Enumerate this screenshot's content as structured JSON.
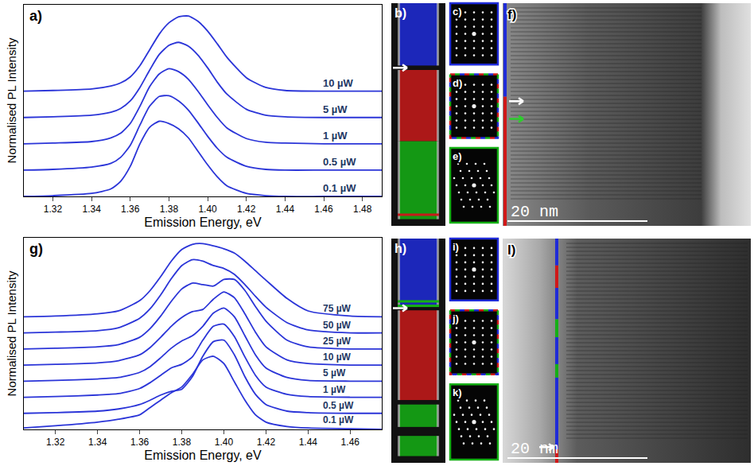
{
  "chart_data": [
    {
      "type": "line",
      "title": "a)",
      "x_label": "Emission Energy, eV",
      "y_label": "Normalised PL Intensity",
      "x": [
        1.305,
        1.32,
        1.34,
        1.35,
        1.355,
        1.36,
        1.365,
        1.37,
        1.375,
        1.38,
        1.385,
        1.39,
        1.395,
        1.4,
        1.405,
        1.41,
        1.42,
        1.43,
        1.44,
        1.46,
        1.49
      ],
      "xlim": [
        1.305,
        1.49
      ],
      "xticks": [
        1.32,
        1.34,
        1.36,
        1.38,
        {
          "value": 1.4,
          "label": "1.40"
        },
        1.42,
        1.44,
        1.46,
        1.48
      ],
      "ylim": [
        0,
        2.55
      ],
      "yticks": [],
      "grid": false,
      "tick_labels": "x",
      "color": "#2b35d8",
      "series": [
        {
          "name": "10 µW",
          "values": [
            1.4,
            1.41,
            1.43,
            1.47,
            1.51,
            1.59,
            1.74,
            1.95,
            2.16,
            2.31,
            2.39,
            2.4,
            2.33,
            2.2,
            2.03,
            1.85,
            1.58,
            1.45,
            1.41,
            1.4,
            1.4
          ]
        },
        {
          "name": "5 µW",
          "values": [
            1.05,
            1.06,
            1.08,
            1.12,
            1.17,
            1.27,
            1.45,
            1.68,
            1.89,
            2.01,
            2.05,
            2.0,
            1.88,
            1.71,
            1.52,
            1.36,
            1.16,
            1.08,
            1.06,
            1.05,
            1.05
          ]
        },
        {
          "name": "1 µW",
          "values": [
            0.7,
            0.71,
            0.73,
            0.78,
            0.84,
            0.97,
            1.2,
            1.46,
            1.63,
            1.7,
            1.66,
            1.56,
            1.4,
            1.22,
            1.05,
            0.91,
            0.77,
            0.72,
            0.71,
            0.7,
            0.7
          ]
        },
        {
          "name": "0.5 µW",
          "values": [
            0.35,
            0.36,
            0.39,
            0.44,
            0.52,
            0.68,
            0.95,
            1.2,
            1.33,
            1.34,
            1.27,
            1.15,
            0.98,
            0.8,
            0.64,
            0.52,
            0.4,
            0.36,
            0.35,
            0.35,
            0.35
          ]
        },
        {
          "name": "0.1 µW",
          "values": [
            0,
            0.01,
            0.04,
            0.1,
            0.2,
            0.4,
            0.7,
            0.92,
            1.0,
            0.97,
            0.9,
            0.78,
            0.6,
            0.42,
            0.26,
            0.14,
            0.04,
            0.01,
            0,
            0,
            0
          ]
        }
      ]
    },
    {
      "type": "line",
      "title": "g)",
      "x_label": "Emission Energy, eV",
      "y_label": "Normalised PL Intensity",
      "x": [
        1.305,
        1.32,
        1.34,
        1.35,
        1.36,
        1.365,
        1.37,
        1.375,
        1.38,
        1.385,
        1.39,
        1.395,
        1.4,
        1.405,
        1.41,
        1.415,
        1.42,
        1.43,
        1.44,
        1.46,
        1.475
      ],
      "xlim": [
        1.305,
        1.475
      ],
      "xticks": [
        1.32,
        1.34,
        1.36,
        1.38,
        {
          "value": 1.4,
          "label": "1.40"
        },
        1.42,
        1.44,
        1.46
      ],
      "ylim": [
        0,
        2.62
      ],
      "yticks": [],
      "grid": false,
      "tick_labels": "x",
      "color": "#2b35d8",
      "series": [
        {
          "name": "75 µW",
          "values": [
            1.54,
            1.55,
            1.58,
            1.62,
            1.76,
            1.9,
            2.09,
            2.3,
            2.46,
            2.53,
            2.54,
            2.51,
            2.47,
            2.41,
            2.3,
            2.17,
            2.04,
            1.79,
            1.62,
            1.55,
            1.54
          ]
        },
        {
          "name": "50 µW",
          "values": [
            1.32,
            1.33,
            1.35,
            1.39,
            1.52,
            1.65,
            1.84,
            2.06,
            2.24,
            2.32,
            2.3,
            2.24,
            2.2,
            2.12,
            1.98,
            1.82,
            1.67,
            1.46,
            1.36,
            1.32,
            1.32
          ]
        },
        {
          "name": "25 µW",
          "values": [
            1.1,
            1.11,
            1.13,
            1.16,
            1.26,
            1.38,
            1.55,
            1.75,
            1.92,
            2.0,
            1.98,
            1.96,
            2.05,
            2.05,
            1.9,
            1.68,
            1.48,
            1.22,
            1.13,
            1.1,
            1.1
          ]
        },
        {
          "name": "10 µW",
          "values": [
            0.88,
            0.89,
            0.91,
            0.94,
            1.02,
            1.12,
            1.26,
            1.41,
            1.53,
            1.61,
            1.64,
            1.78,
            1.88,
            1.8,
            1.58,
            1.33,
            1.13,
            0.95,
            0.9,
            0.88,
            0.88
          ]
        },
        {
          "name": "5 µW",
          "values": [
            0.66,
            0.67,
            0.69,
            0.71,
            0.78,
            0.86,
            0.98,
            1.11,
            1.21,
            1.28,
            1.41,
            1.59,
            1.66,
            1.54,
            1.28,
            1.02,
            0.84,
            0.71,
            0.67,
            0.66,
            0.66
          ]
        },
        {
          "name": "1 µW",
          "values": [
            0.44,
            0.45,
            0.47,
            0.49,
            0.56,
            0.64,
            0.74,
            0.84,
            0.89,
            0.99,
            1.22,
            1.41,
            1.44,
            1.27,
            0.99,
            0.74,
            0.58,
            0.48,
            0.45,
            0.44,
            0.44
          ]
        },
        {
          "name": "0.5 µW",
          "values": [
            0.22,
            0.23,
            0.25,
            0.28,
            0.34,
            0.4,
            0.47,
            0.52,
            0.55,
            0.72,
            1.0,
            1.2,
            1.22,
            1.02,
            0.72,
            0.48,
            0.34,
            0.25,
            0.23,
            0.22,
            0.22
          ]
        },
        {
          "name": "0.1 µW",
          "values": [
            0.02,
            0.05,
            0.1,
            0.14,
            0.2,
            0.3,
            0.4,
            0.5,
            0.58,
            0.75,
            0.95,
            1.0,
            0.9,
            0.65,
            0.4,
            0.2,
            0.1,
            0.04,
            0.02,
            0.01,
            0
          ]
        }
      ]
    }
  ],
  "micrographs": [
    {
      "letters": [
        "b)",
        "c)",
        "d)",
        "e)",
        "f)"
      ],
      "scale_bar": "20 nm"
    },
    {
      "letters": [
        "h)",
        "i)",
        "j)",
        "k)",
        "l)"
      ],
      "scale_bar": "20 nm"
    }
  ]
}
